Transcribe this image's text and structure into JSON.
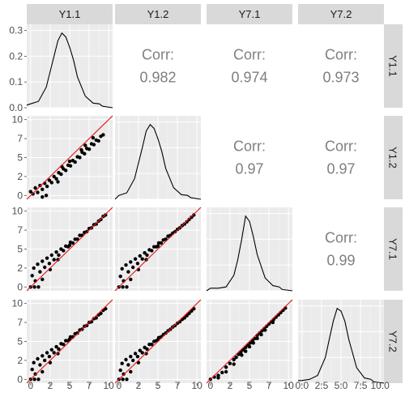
{
  "chart_data": {
    "type": "scatter",
    "variables": [
      "Y1.1",
      "Y1.2",
      "Y7.1",
      "Y7.2"
    ],
    "density_ylim": [
      0,
      0.3
    ],
    "density_yticks": [
      "0.0",
      "0.1",
      "0.2",
      "0.3"
    ],
    "scatter_yticks": [
      "0",
      "2",
      "5",
      "7",
      "10"
    ],
    "scatter_ytick_values": [
      0,
      2.5,
      5,
      7.5,
      10
    ],
    "xticks_cols123": [
      "0",
      "2",
      "5",
      "7",
      "10"
    ],
    "xtick_values": [
      0,
      2.5,
      5,
      7.5,
      10
    ],
    "xticks_col4": [
      "0.0",
      "2.5",
      "5.0",
      "7.5",
      "10.0"
    ],
    "xlim": [
      -0.5,
      10.5
    ],
    "ylim": [
      -0.5,
      10.5
    ],
    "correlations": [
      {
        "row": 0,
        "col": 1,
        "label": "Corr:",
        "value": "0.982"
      },
      {
        "row": 0,
        "col": 2,
        "label": "Corr:",
        "value": "0.974"
      },
      {
        "row": 0,
        "col": 3,
        "label": "Corr:",
        "value": "0.973"
      },
      {
        "row": 1,
        "col": 2,
        "label": "Corr:",
        "value": "0.97"
      },
      {
        "row": 1,
        "col": 3,
        "label": "Corr:",
        "value": "0.97"
      },
      {
        "row": 2,
        "col": 3,
        "label": "Corr:",
        "value": "0.99"
      }
    ],
    "densities": [
      {
        "x": [
          -0.5,
          0.0,
          1.0,
          2.0,
          3.0,
          3.5,
          4.0,
          4.5,
          5.0,
          5.5,
          6.0,
          7.0,
          8.0,
          8.8,
          9.2,
          10.5
        ],
        "y": [
          0.01,
          0.015,
          0.025,
          0.08,
          0.2,
          0.26,
          0.29,
          0.275,
          0.235,
          0.185,
          0.12,
          0.045,
          0.018,
          0.015,
          0.006,
          0.0
        ]
      },
      {
        "x": [
          -0.5,
          0.0,
          1.0,
          2.0,
          3.0,
          3.5,
          4.0,
          4.5,
          5.0,
          5.5,
          6.0,
          7.0,
          8.0,
          8.8,
          9.2,
          10.5
        ],
        "y": [
          0.0,
          0.015,
          0.025,
          0.08,
          0.2,
          0.265,
          0.29,
          0.275,
          0.235,
          0.185,
          0.12,
          0.045,
          0.018,
          0.015,
          0.006,
          0.0
        ]
      },
      {
        "x": [
          -0.5,
          0.0,
          1.0,
          2.0,
          3.0,
          3.5,
          4.0,
          4.5,
          5.0,
          5.5,
          6.0,
          7.0,
          8.0,
          8.8,
          9.2,
          10.5
        ],
        "y": [
          0.0,
          0.01,
          0.01,
          0.015,
          0.06,
          0.12,
          0.2,
          0.29,
          0.27,
          0.21,
          0.14,
          0.05,
          0.02,
          0.015,
          0.005,
          0.0
        ]
      },
      {
        "x": [
          -0.5,
          0.0,
          1.0,
          2.0,
          3.0,
          3.5,
          4.0,
          4.5,
          5.0,
          5.5,
          6.0,
          7.0,
          8.0,
          8.8,
          9.2,
          10.5
        ],
        "y": [
          0.01,
          0.01,
          0.015,
          0.03,
          0.1,
          0.17,
          0.24,
          0.29,
          0.28,
          0.24,
          0.17,
          0.06,
          0.02,
          0.015,
          0.005,
          0.0
        ]
      }
    ],
    "scatter_panels": [
      {
        "row": 1,
        "col": 0,
        "points": [
          [
            0.0,
            0.5
          ],
          [
            0.3,
            0.2
          ],
          [
            0.6,
            1.0
          ],
          [
            0.9,
            0.4
          ],
          [
            1.2,
            1.3
          ],
          [
            1.5,
            0.8
          ],
          [
            1.8,
            1.6
          ],
          [
            2.1,
            1.2
          ],
          [
            2.4,
            2.0
          ],
          [
            2.7,
            1.7
          ],
          [
            3.0,
            2.5
          ],
          [
            3.3,
            2.2
          ],
          [
            3.6,
            3.0
          ],
          [
            3.9,
            2.8
          ],
          [
            4.2,
            3.5
          ],
          [
            4.5,
            3.3
          ],
          [
            4.8,
            4.0
          ],
          [
            5.1,
            3.9
          ],
          [
            5.4,
            4.6
          ],
          [
            5.7,
            4.4
          ],
          [
            6.0,
            5.1
          ],
          [
            6.3,
            5.0
          ],
          [
            6.6,
            5.7
          ],
          [
            6.9,
            5.5
          ],
          [
            7.2,
            6.2
          ],
          [
            7.5,
            6.1
          ],
          [
            7.8,
            6.8
          ],
          [
            8.1,
            6.7
          ],
          [
            8.4,
            7.3
          ],
          [
            8.7,
            7.2
          ],
          [
            9.0,
            7.8
          ],
          [
            9.3,
            8.0
          ],
          [
            2.0,
            0.0
          ],
          [
            1.5,
            -0.2
          ],
          [
            3.5,
            1.8
          ],
          [
            5.0,
            4.5
          ],
          [
            6.5,
            6.0
          ],
          [
            4.0,
            3.8
          ],
          [
            7.0,
            6.6
          ],
          [
            8.0,
            7.6
          ]
        ]
      },
      {
        "row": 2,
        "col": 0,
        "points": [
          [
            0.0,
            0.0
          ],
          [
            0.2,
            1.5
          ],
          [
            0.4,
            2.5
          ],
          [
            0.6,
            0.8
          ],
          [
            0.9,
            3.0
          ],
          [
            1.2,
            2.0
          ],
          [
            1.5,
            3.4
          ],
          [
            1.8,
            2.6
          ],
          [
            2.1,
            3.8
          ],
          [
            2.4,
            3.1
          ],
          [
            2.7,
            4.2
          ],
          [
            3.0,
            3.6
          ],
          [
            3.3,
            4.6
          ],
          [
            3.6,
            4.2
          ],
          [
            3.9,
            5.0
          ],
          [
            4.2,
            4.8
          ],
          [
            4.5,
            5.4
          ],
          [
            4.8,
            5.3
          ],
          [
            5.1,
            5.9
          ],
          [
            5.4,
            5.8
          ],
          [
            5.7,
            6.3
          ],
          [
            6.0,
            6.3
          ],
          [
            6.3,
            6.8
          ],
          [
            6.6,
            6.8
          ],
          [
            6.9,
            7.2
          ],
          [
            7.2,
            7.3
          ],
          [
            7.5,
            7.7
          ],
          [
            7.8,
            7.8
          ],
          [
            8.1,
            8.2
          ],
          [
            8.4,
            8.3
          ],
          [
            8.7,
            8.7
          ],
          [
            9.0,
            8.9
          ],
          [
            9.3,
            9.3
          ],
          [
            9.6,
            9.5
          ],
          [
            0.5,
            0.0
          ],
          [
            1.0,
            0.0
          ],
          [
            1.5,
            1.0
          ],
          [
            2.5,
            2.3
          ],
          [
            3.5,
            3.6
          ],
          [
            5.0,
            5.5
          ]
        ]
      },
      {
        "row": 2,
        "col": 1,
        "points": [
          [
            0.0,
            0.0
          ],
          [
            0.2,
            1.4
          ],
          [
            0.4,
            2.4
          ],
          [
            0.6,
            0.8
          ],
          [
            0.9,
            2.9
          ],
          [
            1.2,
            2.0
          ],
          [
            1.5,
            3.3
          ],
          [
            1.8,
            2.6
          ],
          [
            2.1,
            3.7
          ],
          [
            2.4,
            3.1
          ],
          [
            2.7,
            4.1
          ],
          [
            3.0,
            3.7
          ],
          [
            3.3,
            4.5
          ],
          [
            3.6,
            4.2
          ],
          [
            3.9,
            4.9
          ],
          [
            4.2,
            4.8
          ],
          [
            4.5,
            5.3
          ],
          [
            4.8,
            5.3
          ],
          [
            5.1,
            5.8
          ],
          [
            5.4,
            5.8
          ],
          [
            5.7,
            6.2
          ],
          [
            6.0,
            6.3
          ],
          [
            6.3,
            6.7
          ],
          [
            6.6,
            6.8
          ],
          [
            6.9,
            7.1
          ],
          [
            7.2,
            7.3
          ],
          [
            7.5,
            7.6
          ],
          [
            7.8,
            7.8
          ],
          [
            8.1,
            8.1
          ],
          [
            8.4,
            8.3
          ],
          [
            8.7,
            8.6
          ],
          [
            9.0,
            8.9
          ],
          [
            9.3,
            9.2
          ],
          [
            9.6,
            9.5
          ],
          [
            0.5,
            0.0
          ],
          [
            1.0,
            0.0
          ],
          [
            1.5,
            1.0
          ],
          [
            2.5,
            2.3
          ],
          [
            3.5,
            3.6
          ],
          [
            5.0,
            5.4
          ]
        ]
      },
      {
        "row": 3,
        "col": 0,
        "points": [
          [
            0.0,
            0.0
          ],
          [
            0.2,
            1.3
          ],
          [
            0.4,
            2.2
          ],
          [
            0.6,
            0.7
          ],
          [
            0.9,
            2.7
          ],
          [
            1.2,
            1.9
          ],
          [
            1.5,
            3.1
          ],
          [
            1.8,
            2.5
          ],
          [
            2.1,
            3.5
          ],
          [
            2.4,
            3.0
          ],
          [
            2.7,
            3.9
          ],
          [
            3.0,
            3.5
          ],
          [
            3.3,
            4.3
          ],
          [
            3.6,
            4.0
          ],
          [
            3.9,
            4.7
          ],
          [
            4.2,
            4.6
          ],
          [
            4.5,
            5.1
          ],
          [
            4.8,
            5.1
          ],
          [
            5.1,
            5.6
          ],
          [
            5.4,
            5.6
          ],
          [
            5.7,
            6.0
          ],
          [
            6.0,
            6.1
          ],
          [
            6.3,
            6.5
          ],
          [
            6.6,
            6.6
          ],
          [
            6.9,
            7.0
          ],
          [
            7.2,
            7.1
          ],
          [
            7.5,
            7.5
          ],
          [
            7.8,
            7.6
          ],
          [
            8.1,
            8.0
          ],
          [
            8.4,
            8.1
          ],
          [
            8.7,
            8.5
          ],
          [
            9.0,
            8.7
          ],
          [
            9.3,
            9.1
          ],
          [
            9.6,
            9.3
          ],
          [
            0.5,
            0.0
          ],
          [
            1.0,
            0.0
          ],
          [
            1.5,
            1.0
          ],
          [
            2.5,
            2.2
          ],
          [
            3.5,
            3.4
          ],
          [
            5.0,
            5.3
          ]
        ]
      },
      {
        "row": 3,
        "col": 1,
        "points": [
          [
            0.0,
            0.0
          ],
          [
            0.2,
            1.2
          ],
          [
            0.4,
            2.1
          ],
          [
            0.6,
            0.7
          ],
          [
            0.9,
            2.6
          ],
          [
            1.2,
            1.9
          ],
          [
            1.5,
            3.0
          ],
          [
            1.8,
            2.5
          ],
          [
            2.1,
            3.4
          ],
          [
            2.4,
            3.0
          ],
          [
            2.7,
            3.8
          ],
          [
            3.0,
            3.5
          ],
          [
            3.3,
            4.2
          ],
          [
            3.6,
            4.0
          ],
          [
            3.9,
            4.6
          ],
          [
            4.2,
            4.6
          ],
          [
            4.5,
            5.0
          ],
          [
            4.8,
            5.1
          ],
          [
            5.1,
            5.5
          ],
          [
            5.4,
            5.6
          ],
          [
            5.7,
            5.9
          ],
          [
            6.0,
            6.1
          ],
          [
            6.3,
            6.4
          ],
          [
            6.6,
            6.6
          ],
          [
            6.9,
            6.9
          ],
          [
            7.2,
            7.1
          ],
          [
            7.5,
            7.4
          ],
          [
            7.8,
            7.6
          ],
          [
            8.1,
            7.9
          ],
          [
            8.4,
            8.1
          ],
          [
            8.7,
            8.4
          ],
          [
            9.0,
            8.7
          ],
          [
            9.3,
            9.0
          ],
          [
            9.6,
            9.3
          ],
          [
            0.5,
            0.0
          ],
          [
            1.0,
            0.0
          ],
          [
            1.5,
            1.0
          ],
          [
            2.5,
            2.2
          ],
          [
            3.5,
            3.4
          ],
          [
            5.0,
            5.2
          ]
        ]
      },
      {
        "row": 3,
        "col": 2,
        "points": [
          [
            0.0,
            0.0
          ],
          [
            0.5,
            0.3
          ],
          [
            1.0,
            0.5
          ],
          [
            1.5,
            0.9
          ],
          [
            2.0,
            1.6
          ],
          [
            2.5,
            2.1
          ],
          [
            3.0,
            2.6
          ],
          [
            3.3,
            2.9
          ],
          [
            3.6,
            3.3
          ],
          [
            3.9,
            3.6
          ],
          [
            4.2,
            3.9
          ],
          [
            4.5,
            4.2
          ],
          [
            4.8,
            4.5
          ],
          [
            5.1,
            4.8
          ],
          [
            5.4,
            5.1
          ],
          [
            5.7,
            5.4
          ],
          [
            6.0,
            5.8
          ],
          [
            6.3,
            6.1
          ],
          [
            6.6,
            6.4
          ],
          [
            6.9,
            6.7
          ],
          [
            7.2,
            7.0
          ],
          [
            7.5,
            7.3
          ],
          [
            7.8,
            7.6
          ],
          [
            8.1,
            7.9
          ],
          [
            8.4,
            8.2
          ],
          [
            8.7,
            8.5
          ],
          [
            9.0,
            8.8
          ],
          [
            9.3,
            9.1
          ],
          [
            9.6,
            9.4
          ],
          [
            2.0,
            1.0
          ],
          [
            3.0,
            2.0
          ],
          [
            4.0,
            3.2
          ],
          [
            5.0,
            4.3
          ],
          [
            6.0,
            5.4
          ],
          [
            7.0,
            6.5
          ],
          [
            8.0,
            7.5
          ],
          [
            4.5,
            3.7
          ],
          [
            5.5,
            4.8
          ],
          [
            6.5,
            5.9
          ],
          [
            1.0,
            0.2
          ]
        ]
      }
    ]
  }
}
